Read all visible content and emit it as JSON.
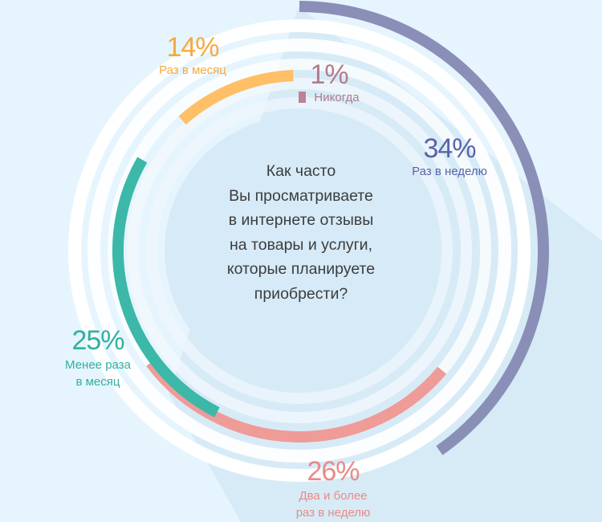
{
  "question": {
    "lines": [
      "Как часто",
      "Вы просматриваете",
      "в интернете отзывы",
      "на товары и услуги,",
      "которые планируете",
      "приобрести?"
    ]
  },
  "segments": [
    {
      "key": "weekly",
      "pct_label": "34%",
      "caption_lines": [
        "Раз в неделю"
      ],
      "color": "#8a8fb8"
    },
    {
      "key": "twice_weekly",
      "pct_label": "26%",
      "caption_lines": [
        "Два и более",
        "раз в неделю"
      ],
      "color": "#ef9b97"
    },
    {
      "key": "less_monthly",
      "pct_label": "25%",
      "caption_lines": [
        "Менее раза",
        "в месяц"
      ],
      "color": "#3cb8a9"
    },
    {
      "key": "monthly",
      "pct_label": "14%",
      "caption_lines": [
        "Раз в месяц"
      ],
      "color": "#ffbf66"
    },
    {
      "key": "never",
      "pct_label": "1%",
      "caption_lines": [
        "Никогда"
      ],
      "color": "#bb8394"
    }
  ],
  "colors": {
    "background": "#e6f5fd",
    "ring_white": "#ffffff",
    "ring_light": "#d4e9f6",
    "shadow": "#cfe5f4",
    "question_text": "#3d3d3d"
  },
  "chart_data": {
    "type": "pie",
    "style": "radial concentric arcs",
    "title": "Как часто Вы просматриваете в интернете отзывы на товары и услуги, которые планируете приобрести?",
    "categories": [
      "Раз в неделю",
      "Два и более раз в неделю",
      "Менее раза в месяц",
      "Раз в месяц",
      "Никогда"
    ],
    "values": [
      34,
      26,
      25,
      14,
      1
    ],
    "unit": "%",
    "legend": "inline labels next to each arc"
  }
}
